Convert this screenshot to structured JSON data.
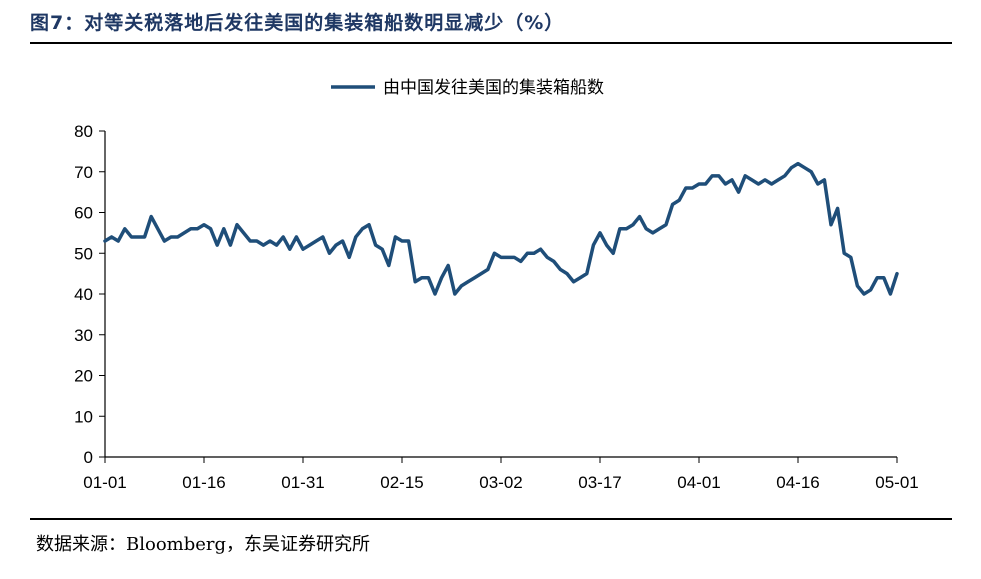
{
  "figure": {
    "title": "图7：对等关税落地后发往美国的集装箱船数明显减少（%）",
    "source": "数据来源：Bloomberg，东吴证券研究所"
  },
  "chart_data": {
    "type": "line",
    "title": "",
    "xlabel": "",
    "ylabel": "",
    "ylim": [
      0,
      80
    ],
    "yticks": [
      0,
      10,
      20,
      30,
      40,
      50,
      60,
      70,
      80
    ],
    "xtick_labels": [
      "01-01",
      "01-16",
      "01-31",
      "02-15",
      "03-02",
      "03-17",
      "04-01",
      "04-16",
      "05-01"
    ],
    "grid": false,
    "legend_position": "top-center",
    "series": [
      {
        "name": "由中国发往美国的集装箱船数",
        "color": "#1f4e79",
        "values": [
          53,
          54,
          53,
          56,
          54,
          54,
          54,
          59,
          56,
          53,
          54,
          54,
          55,
          56,
          56,
          57,
          56,
          52,
          56,
          52,
          57,
          55,
          53,
          53,
          52,
          53,
          52,
          54,
          51,
          54,
          51,
          52,
          53,
          54,
          50,
          52,
          53,
          49,
          54,
          56,
          57,
          52,
          51,
          47,
          54,
          53,
          53,
          43,
          44,
          44,
          40,
          44,
          47,
          40,
          42,
          43,
          44,
          45,
          46,
          50,
          49,
          49,
          49,
          48,
          50,
          50,
          51,
          49,
          48,
          46,
          45,
          43,
          44,
          45,
          52,
          55,
          52,
          50,
          56,
          56,
          57,
          59,
          56,
          55,
          56,
          57,
          62,
          63,
          66,
          66,
          67,
          67,
          69,
          69,
          67,
          68,
          65,
          69,
          68,
          67,
          68,
          67,
          68,
          69,
          71,
          72,
          71,
          70,
          67,
          68,
          57,
          61,
          50,
          49,
          42,
          40,
          41,
          44,
          44,
          40,
          45
        ]
      }
    ]
  }
}
